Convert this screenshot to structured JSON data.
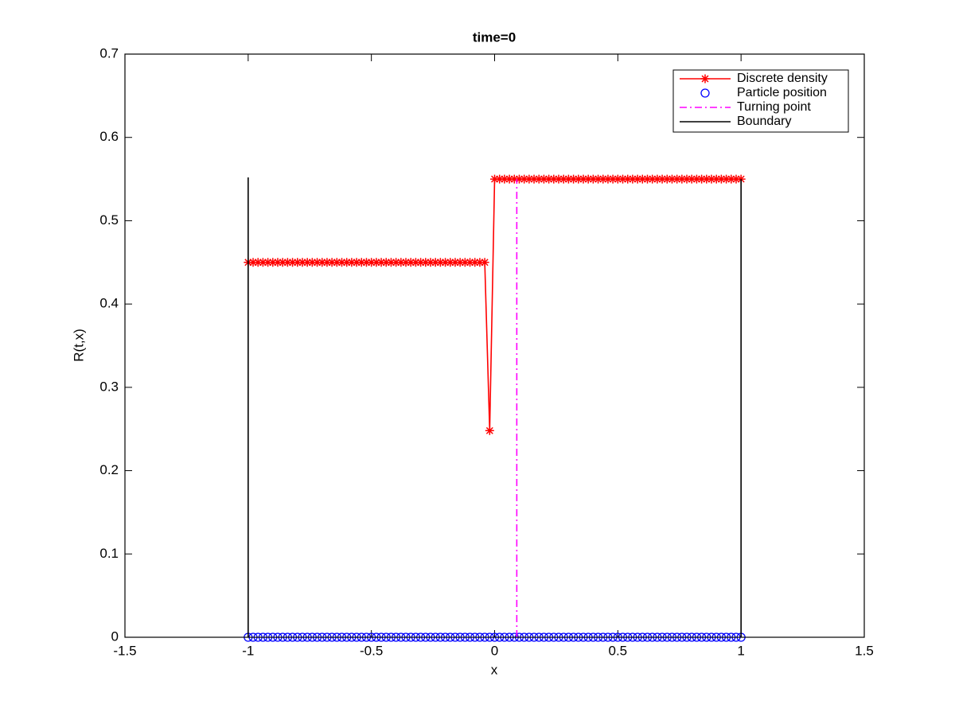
{
  "chart_data": {
    "type": "line",
    "title": "time=0",
    "xlabel": "x",
    "ylabel": "R(t,x)",
    "xlim": [
      -1.5,
      1.5
    ],
    "ylim": [
      0,
      0.7
    ],
    "xticks": [
      -1.5,
      -1,
      -0.5,
      0,
      0.5,
      1,
      1.5
    ],
    "yticks": [
      0,
      0.1,
      0.2,
      0.3,
      0.4,
      0.5,
      0.6,
      0.7
    ],
    "legend": "northeast",
    "series": [
      {
        "name": "Discrete density",
        "color": "#ff0000",
        "marker": "*",
        "linestyle": "-",
        "x": [
          -1,
          -0.98,
          -0.96,
          -0.94,
          -0.92,
          -0.9,
          -0.88,
          -0.86,
          -0.84,
          -0.82,
          -0.8,
          -0.78,
          -0.76,
          -0.74,
          -0.72,
          -0.7,
          -0.68,
          -0.66,
          -0.64,
          -0.62,
          -0.6,
          -0.58,
          -0.56,
          -0.54,
          -0.52,
          -0.5,
          -0.48,
          -0.46,
          -0.44,
          -0.42,
          -0.4,
          -0.38,
          -0.36,
          -0.34,
          -0.32,
          -0.3,
          -0.28,
          -0.26,
          -0.24,
          -0.22,
          -0.2,
          -0.18,
          -0.16,
          -0.14,
          -0.12,
          -0.1,
          -0.08,
          -0.06,
          -0.04,
          -0.02,
          0,
          0.02,
          0.04,
          0.06,
          0.08,
          0.1,
          0.12,
          0.14,
          0.16,
          0.18,
          0.2,
          0.22,
          0.24,
          0.26,
          0.28,
          0.3,
          0.32,
          0.34,
          0.36,
          0.38,
          0.4,
          0.42,
          0.44,
          0.46,
          0.48,
          0.5,
          0.52,
          0.54,
          0.56,
          0.58,
          0.6,
          0.62,
          0.64,
          0.66,
          0.68,
          0.7,
          0.72,
          0.74,
          0.76,
          0.78,
          0.8,
          0.82,
          0.84,
          0.86,
          0.88,
          0.9,
          0.92,
          0.94,
          0.96,
          0.98,
          1
        ],
        "values": [
          0.45,
          0.45,
          0.45,
          0.45,
          0.45,
          0.45,
          0.45,
          0.45,
          0.45,
          0.45,
          0.45,
          0.45,
          0.45,
          0.45,
          0.45,
          0.45,
          0.45,
          0.45,
          0.45,
          0.45,
          0.45,
          0.45,
          0.45,
          0.45,
          0.45,
          0.45,
          0.45,
          0.45,
          0.45,
          0.45,
          0.45,
          0.45,
          0.45,
          0.45,
          0.45,
          0.45,
          0.45,
          0.45,
          0.45,
          0.45,
          0.45,
          0.45,
          0.45,
          0.45,
          0.45,
          0.45,
          0.45,
          0.45,
          0.45,
          0.248,
          0.55,
          0.55,
          0.55,
          0.55,
          0.55,
          0.55,
          0.55,
          0.55,
          0.55,
          0.55,
          0.55,
          0.55,
          0.55,
          0.55,
          0.55,
          0.55,
          0.55,
          0.55,
          0.55,
          0.55,
          0.55,
          0.55,
          0.55,
          0.55,
          0.55,
          0.55,
          0.55,
          0.55,
          0.55,
          0.55,
          0.55,
          0.55,
          0.55,
          0.55,
          0.55,
          0.55,
          0.55,
          0.55,
          0.55,
          0.55,
          0.55,
          0.55,
          0.55,
          0.55,
          0.55,
          0.55,
          0.55,
          0.55,
          0.55,
          0.55,
          0.55
        ]
      },
      {
        "name": "Particle position",
        "color": "#0000ff",
        "marker": "o",
        "linestyle": "none",
        "x": [
          -1,
          -0.98,
          -0.96,
          -0.94,
          -0.92,
          -0.9,
          -0.88,
          -0.86,
          -0.84,
          -0.82,
          -0.8,
          -0.78,
          -0.76,
          -0.74,
          -0.72,
          -0.7,
          -0.68,
          -0.66,
          -0.64,
          -0.62,
          -0.6,
          -0.58,
          -0.56,
          -0.54,
          -0.52,
          -0.5,
          -0.48,
          -0.46,
          -0.44,
          -0.42,
          -0.4,
          -0.38,
          -0.36,
          -0.34,
          -0.32,
          -0.3,
          -0.28,
          -0.26,
          -0.24,
          -0.22,
          -0.2,
          -0.18,
          -0.16,
          -0.14,
          -0.12,
          -0.1,
          -0.08,
          -0.06,
          -0.04,
          -0.02,
          0,
          0.02,
          0.04,
          0.06,
          0.08,
          0.1,
          0.12,
          0.14,
          0.16,
          0.18,
          0.2,
          0.22,
          0.24,
          0.26,
          0.28,
          0.3,
          0.32,
          0.34,
          0.36,
          0.38,
          0.4,
          0.42,
          0.44,
          0.46,
          0.48,
          0.5,
          0.52,
          0.54,
          0.56,
          0.58,
          0.6,
          0.62,
          0.64,
          0.66,
          0.68,
          0.7,
          0.72,
          0.74,
          0.76,
          0.78,
          0.8,
          0.82,
          0.84,
          0.86,
          0.88,
          0.9,
          0.92,
          0.94,
          0.96,
          0.98,
          1
        ],
        "values": [
          0,
          0,
          0,
          0,
          0,
          0,
          0,
          0,
          0,
          0,
          0,
          0,
          0,
          0,
          0,
          0,
          0,
          0,
          0,
          0,
          0,
          0,
          0,
          0,
          0,
          0,
          0,
          0,
          0,
          0,
          0,
          0,
          0,
          0,
          0,
          0,
          0,
          0,
          0,
          0,
          0,
          0,
          0,
          0,
          0,
          0,
          0,
          0,
          0,
          0,
          0,
          0,
          0,
          0,
          0,
          0,
          0,
          0,
          0,
          0,
          0,
          0,
          0,
          0,
          0,
          0,
          0,
          0,
          0,
          0,
          0,
          0,
          0,
          0,
          0,
          0,
          0,
          0,
          0,
          0,
          0,
          0,
          0,
          0,
          0,
          0,
          0,
          0,
          0,
          0,
          0,
          0,
          0,
          0,
          0,
          0,
          0,
          0,
          0,
          0,
          0
        ]
      },
      {
        "name": "Turning point",
        "color": "#ff00ff",
        "marker": null,
        "linestyle": "-.",
        "x": [
          0.09,
          0.09
        ],
        "values": [
          0,
          0.55
        ]
      },
      {
        "name": "Boundary",
        "color": "#000000",
        "marker": null,
        "linestyle": "-",
        "x": [
          -1,
          -1,
          null,
          1,
          1
        ],
        "values": [
          0,
          0.552,
          null,
          0,
          0.55
        ]
      }
    ]
  }
}
